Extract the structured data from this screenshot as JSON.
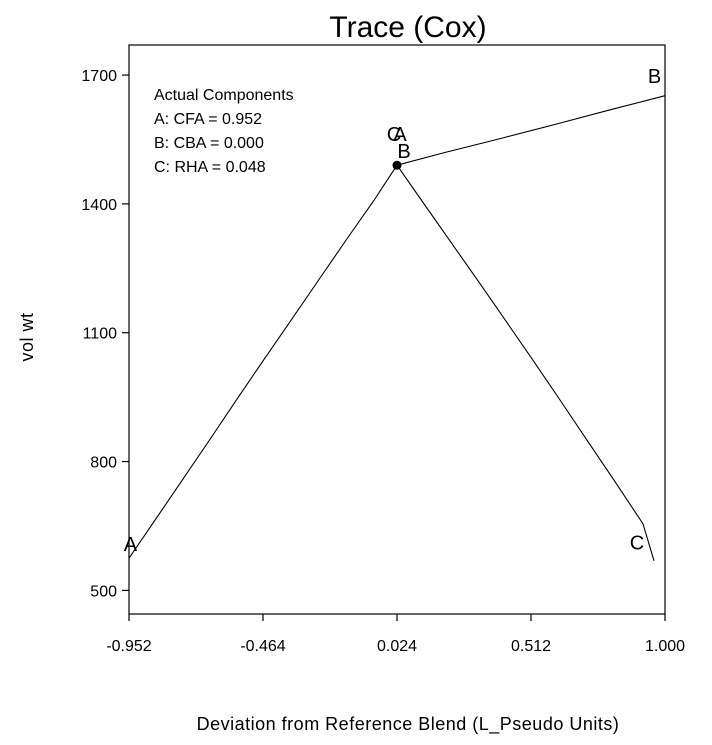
{
  "chart_data": {
    "type": "line",
    "title": "Trace (Cox)",
    "xlabel": "Deviation from Reference Blend (L_Pseudo Units)",
    "ylabel": "vol wt",
    "x_ticks": [
      "-0.952",
      "-0.464",
      "0.024",
      "0.512",
      "1.000"
    ],
    "y_ticks": [
      "500",
      "800",
      "1100",
      "1400",
      "1700"
    ],
    "xlim": [
      -0.952,
      1.0
    ],
    "ylim": [
      445,
      1770
    ],
    "grid": false,
    "legend": {
      "title": "Actual Components",
      "items": [
        "A: CFA = 0.952",
        "B: CBA = 0.000",
        "C: RHA = 0.048"
      ],
      "placement": "top-left"
    },
    "series": [
      {
        "name": "A",
        "x": [
          -0.952,
          -0.86,
          -0.76,
          -0.66,
          -0.56,
          -0.46,
          -0.36,
          -0.26,
          -0.16,
          -0.06,
          0.024
        ],
        "y": [
          575,
          661,
          755,
          849,
          944,
          1038,
          1131,
          1224,
          1317,
          1408,
          1490
        ],
        "label_point": [
          -0.947,
          592
        ]
      },
      {
        "name": "B",
        "x": [
          0.024,
          0.2,
          0.4,
          0.6,
          0.8,
          1.0
        ],
        "y": [
          1490,
          1520,
          1552,
          1585,
          1619,
          1652
        ],
        "label_point": [
          0.962,
          1682
        ]
      },
      {
        "name": "C",
        "x": [
          0.024,
          0.12,
          0.22,
          0.32,
          0.42,
          0.52,
          0.62,
          0.72,
          0.82,
          0.92,
          0.96
        ],
        "y": [
          1490,
          1402,
          1311,
          1220,
          1128,
          1035,
          941,
          846,
          751,
          655,
          569
        ],
        "label_point": [
          0.898,
          595
        ]
      }
    ],
    "reference_point": {
      "x": 0.024,
      "y": 1490,
      "labels": [
        "C",
        "A",
        "B"
      ]
    }
  }
}
